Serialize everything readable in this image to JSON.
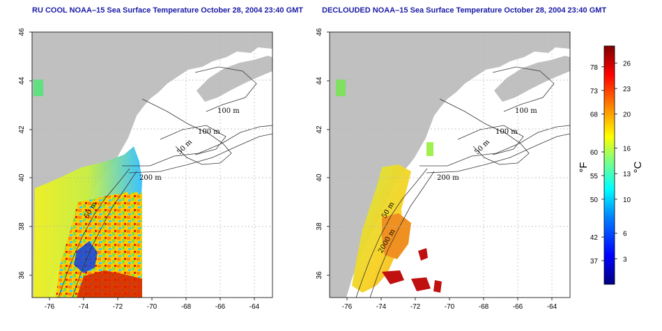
{
  "panels": [
    {
      "title": "RU COOL NOAA–15 Sea Surface Temperature October 28, 2004 23:40 GMT",
      "contour_labels": [
        "100 m",
        "100 m",
        "50 m",
        "200 m",
        "50 m"
      ]
    },
    {
      "title": "DECLOUDED NOAA–15 Sea Surface Temperature October 28, 2004 23:40 GMT",
      "contour_labels": [
        "100 m",
        "100 m",
        "50 m",
        "200 m",
        "50 m",
        "2000 m"
      ]
    }
  ],
  "axes": {
    "lon_ticks": [
      "-76",
      "-74",
      "-72",
      "-70",
      "-68",
      "-66",
      "-64"
    ],
    "lat_ticks": [
      "46",
      "44",
      "42",
      "40",
      "38",
      "36"
    ]
  },
  "colorbar": {
    "fahrenheit_ticks": [
      "78",
      "73",
      "68",
      "60",
      "55",
      "50",
      "42",
      "37"
    ],
    "celsius_ticks": [
      "26",
      "23",
      "20",
      "16",
      "13",
      "10",
      "6",
      "3"
    ],
    "fahrenheit_unit": "°F",
    "celsius_unit": "°C",
    "range_celsius": [
      0,
      28
    ],
    "colors": [
      "#00007f",
      "#0000ff",
      "#0080ff",
      "#00ffff",
      "#80ff80",
      "#ffff00",
      "#ff8000",
      "#ff0000",
      "#7f0000"
    ]
  },
  "colors": {
    "land": "#c0c0c0",
    "title": "#1a1aa6",
    "grid": "#b4b4b4"
  }
}
